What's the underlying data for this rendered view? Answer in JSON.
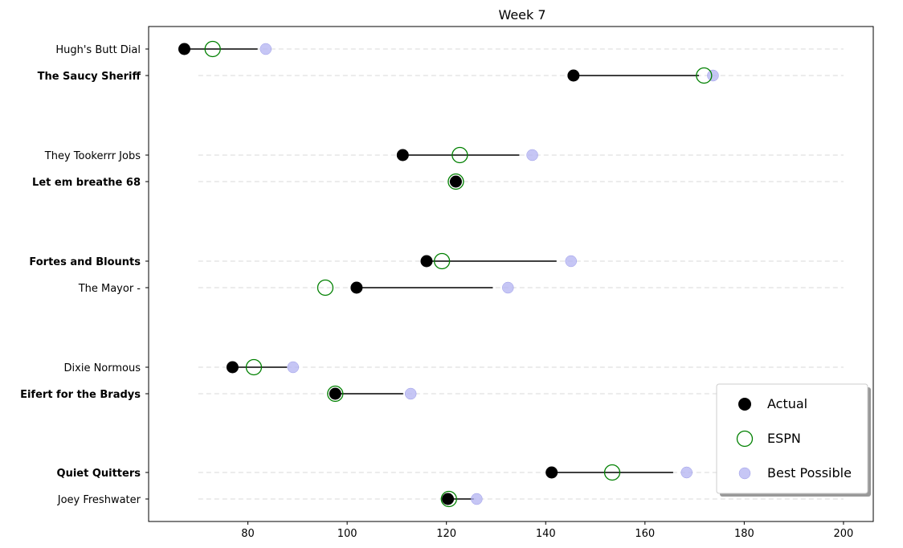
{
  "chart_data": {
    "type": "scatter",
    "title": "Week 7",
    "xlabel": "",
    "ylabel": "",
    "xlim": [
      60,
      206
    ],
    "x_ticks": [
      80,
      100,
      120,
      140,
      160,
      180,
      200
    ],
    "grid": "dashed horizontal lines per team",
    "legend_position": "lower-right",
    "series": [
      {
        "name": "Actual",
        "marker": "filled-circle",
        "color": "#000000"
      },
      {
        "name": "ESPN",
        "marker": "open-circle",
        "color": "#008000"
      },
      {
        "name": "Best Possible",
        "marker": "filled-circle",
        "color": "#b3b3f2"
      }
    ],
    "teams": [
      {
        "name": "Hugh's  Butt Dial",
        "bold": false,
        "actual": 67.2,
        "espn": 72.9,
        "best": 83.6
      },
      {
        "name": "The Saucy Sheriff",
        "bold": true,
        "actual": 145.6,
        "espn": 171.9,
        "best": 173.7
      },
      {
        "name": "They Tookerrr Jobs",
        "bold": false,
        "actual": 111.2,
        "espn": 122.7,
        "best": 137.3
      },
      {
        "name": "Let em breathe 68",
        "bold": true,
        "actual": 121.9,
        "espn": 121.9,
        "best": 121.9
      },
      {
        "name": "Fortes and Blounts",
        "bold": true,
        "actual": 116.0,
        "espn": 119.1,
        "best": 145.1
      },
      {
        "name": "The Mayor -",
        "bold": false,
        "actual": 101.9,
        "espn": 95.6,
        "best": 132.4
      },
      {
        "name": "Dixie Normous",
        "bold": false,
        "actual": 76.9,
        "espn": 81.2,
        "best": 89.1
      },
      {
        "name": "Eifert  for the Bradys",
        "bold": true,
        "actual": 97.6,
        "espn": 97.6,
        "best": 112.8
      },
      {
        "name": "Quiet Quitters",
        "bold": true,
        "actual": 141.2,
        "espn": 153.4,
        "best": 168.4
      },
      {
        "name": "Joey Freshwater",
        "bold": false,
        "actual": 120.3,
        "espn": 120.5,
        "best": 126.1
      }
    ]
  }
}
